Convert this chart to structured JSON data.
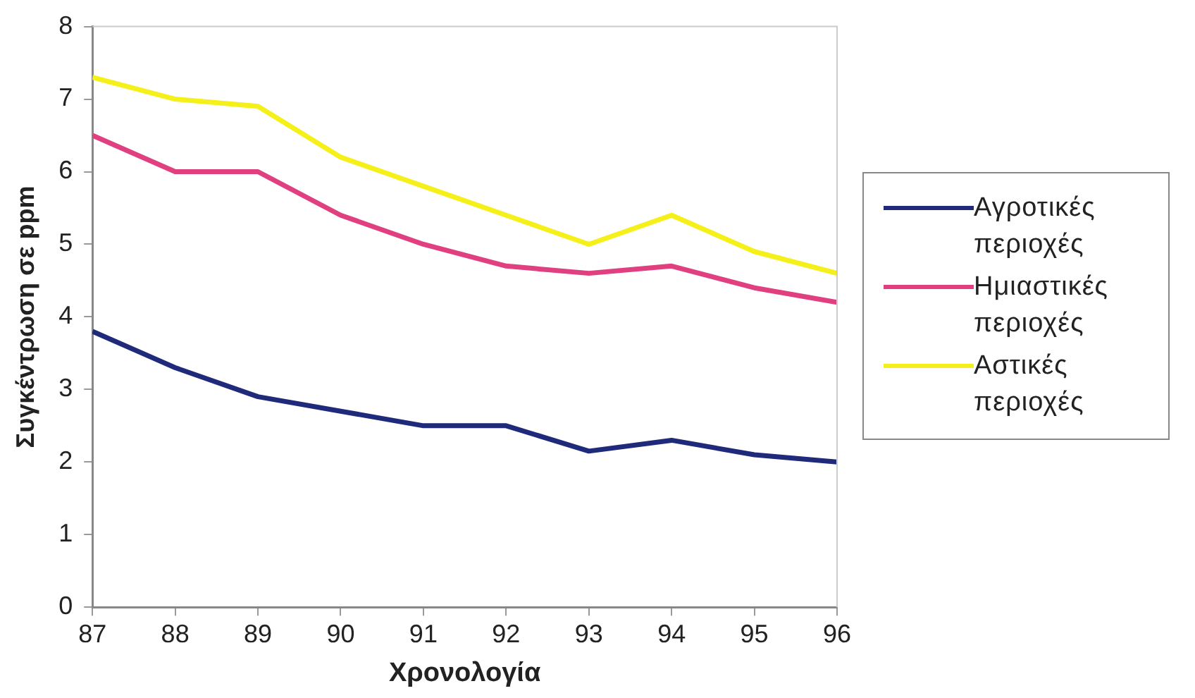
{
  "chart_data": {
    "type": "line",
    "xlabel": "Χρονολογία",
    "ylabel": "Συγκέντρωση σε ppm",
    "x": [
      87,
      88,
      89,
      90,
      91,
      92,
      93,
      94,
      95,
      96
    ],
    "series": [
      {
        "name": "Αγροτικές περιοχές",
        "color": "#1f2a7a",
        "values": [
          3.8,
          3.3,
          2.9,
          2.7,
          2.5,
          2.5,
          2.15,
          2.3,
          2.1,
          2.0
        ]
      },
      {
        "name": "Ημιαστικές περιοχές",
        "color": "#e0407f",
        "values": [
          6.5,
          6.0,
          6.0,
          5.4,
          5.0,
          4.7,
          4.6,
          4.7,
          4.4,
          4.2
        ]
      },
      {
        "name": "Αστικές περιοχές",
        "color": "#f5f01a",
        "values": [
          7.3,
          7.0,
          6.9,
          6.2,
          5.8,
          5.4,
          5.0,
          5.4,
          4.9,
          4.6
        ]
      }
    ],
    "xlim": [
      87,
      96
    ],
    "xticks": [
      87,
      88,
      89,
      90,
      91,
      92,
      93,
      94,
      95,
      96
    ],
    "ylim": [
      0,
      8
    ],
    "yticks": [
      0,
      1,
      2,
      3,
      4,
      5,
      6,
      7,
      8
    ],
    "grid": false,
    "legend": "right",
    "marker": "none",
    "line_style": "solid"
  }
}
